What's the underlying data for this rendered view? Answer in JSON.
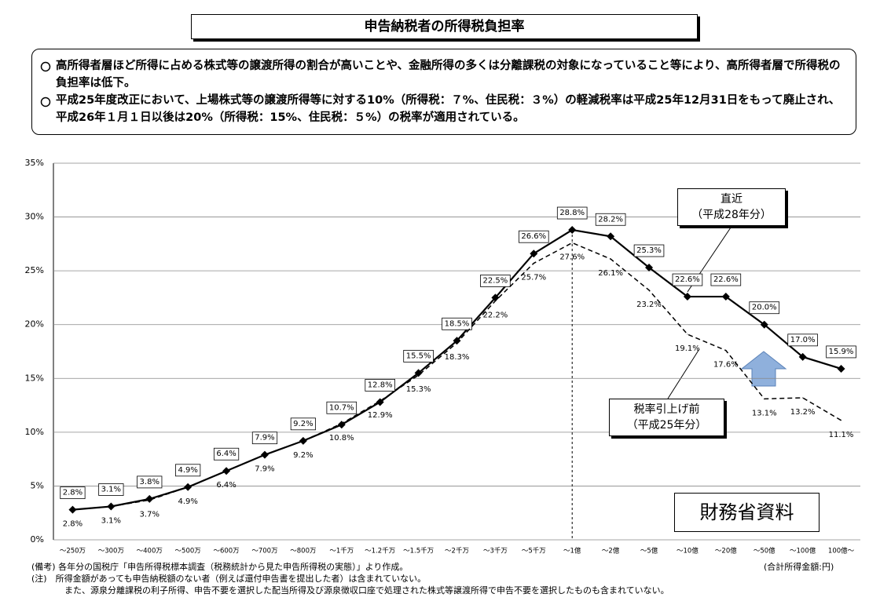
{
  "chart_data": {
    "type": "line",
    "title": "申告納税者の所得税負担率",
    "notes": [
      "高所得者層ほど所得に占める株式等の譲渡所得の割合が高いことや、金融所得の多くは分離課税の対象になっていること等により、高所得者層で所得税の負担率は低下。",
      "平成25年度改正において、上場株式等の譲渡所得等に対する10%（所得税：７%、住民税：３%）の軽減税率は平成25年12月31日をもって廃止され、平成26年１月１日以後は20%（所得税：15%、住民税：５%）の税率が適用されている。"
    ],
    "categories": [
      "～250万",
      "～300万",
      "～400万",
      "～500万",
      "～600万",
      "～700万",
      "～800万",
      "～1千万",
      "～1.2千万",
      "～1.5千万",
      "～2千万",
      "～3千万",
      "～5千万",
      "～1億",
      "～2億",
      "～5億",
      "～10億",
      "～20億",
      "～50億",
      "～100億",
      "100億～"
    ],
    "series": [
      {
        "name": "直近\n（平成28年分）",
        "color": "#000000",
        "dash": false,
        "values": [
          2.8,
          3.1,
          3.8,
          4.9,
          6.4,
          7.9,
          9.2,
          10.7,
          12.8,
          15.5,
          18.5,
          22.5,
          26.6,
          28.8,
          28.2,
          25.3,
          22.6,
          22.6,
          20.0,
          17.0,
          15.9
        ],
        "value_labels": [
          "2.8%",
          "3.1%",
          "3.8%",
          "4.9%",
          "6.4%",
          "7.9%",
          "9.2%",
          "10.7%",
          "12.8%",
          "15.5%",
          "18.5%",
          "22.5%",
          "26.6%",
          "28.8%",
          "28.2%",
          "25.3%",
          "22.6%",
          "22.6%",
          "20.0%",
          "17.0%",
          "15.9%"
        ]
      },
      {
        "name": "税率引上げ前\n（平成25年分）",
        "color": "#000000",
        "dash": true,
        "values": [
          2.8,
          3.1,
          3.7,
          4.9,
          6.4,
          7.9,
          9.2,
          10.8,
          12.9,
          15.3,
          18.3,
          22.2,
          25.7,
          27.6,
          26.1,
          23.2,
          19.1,
          17.6,
          13.1,
          13.2,
          11.1
        ],
        "value_labels": [
          "2.8%",
          "3.1%",
          "3.7%",
          "4.9%",
          "6.4%",
          "7.9%",
          "9.2%",
          "10.8%",
          "12.9%",
          "15.3%",
          "18.3%",
          "22.2%",
          "25.7%",
          "27.6%",
          "26.1%",
          "23.2%",
          "19.1%",
          "17.6%",
          "13.1%",
          "13.2%",
          "11.1%"
        ]
      }
    ],
    "ylim": [
      0,
      35
    ],
    "yticks": [
      {
        "value": 0,
        "label": "0%"
      },
      {
        "value": 5,
        "label": "5%"
      },
      {
        "value": 10,
        "label": "10%"
      },
      {
        "value": 15,
        "label": "15%"
      },
      {
        "value": 20,
        "label": "20%"
      },
      {
        "value": 25,
        "label": "25%"
      },
      {
        "value": 30,
        "label": "30%"
      },
      {
        "value": 35,
        "label": "35%"
      }
    ],
    "grid": true,
    "source_stamp": "財務省資料",
    "unit_note": "(合計所得金額:円)",
    "footnotes": [
      "(備考) 各年分の国税庁「申告所得税標本調査（税務統計から見た申告所得税の実態）」より作成。",
      "(注)　所得金額があっても申告納税額のない者（例えば還付申告書を提出した者）は含まれていない。",
      "また、源泉分離課税の利子所得、申告不要を選択した配当所得及び源泉徴収口座で処理された株式等譲渡所得で申告不要を選択したものも含まれていない。"
    ]
  }
}
